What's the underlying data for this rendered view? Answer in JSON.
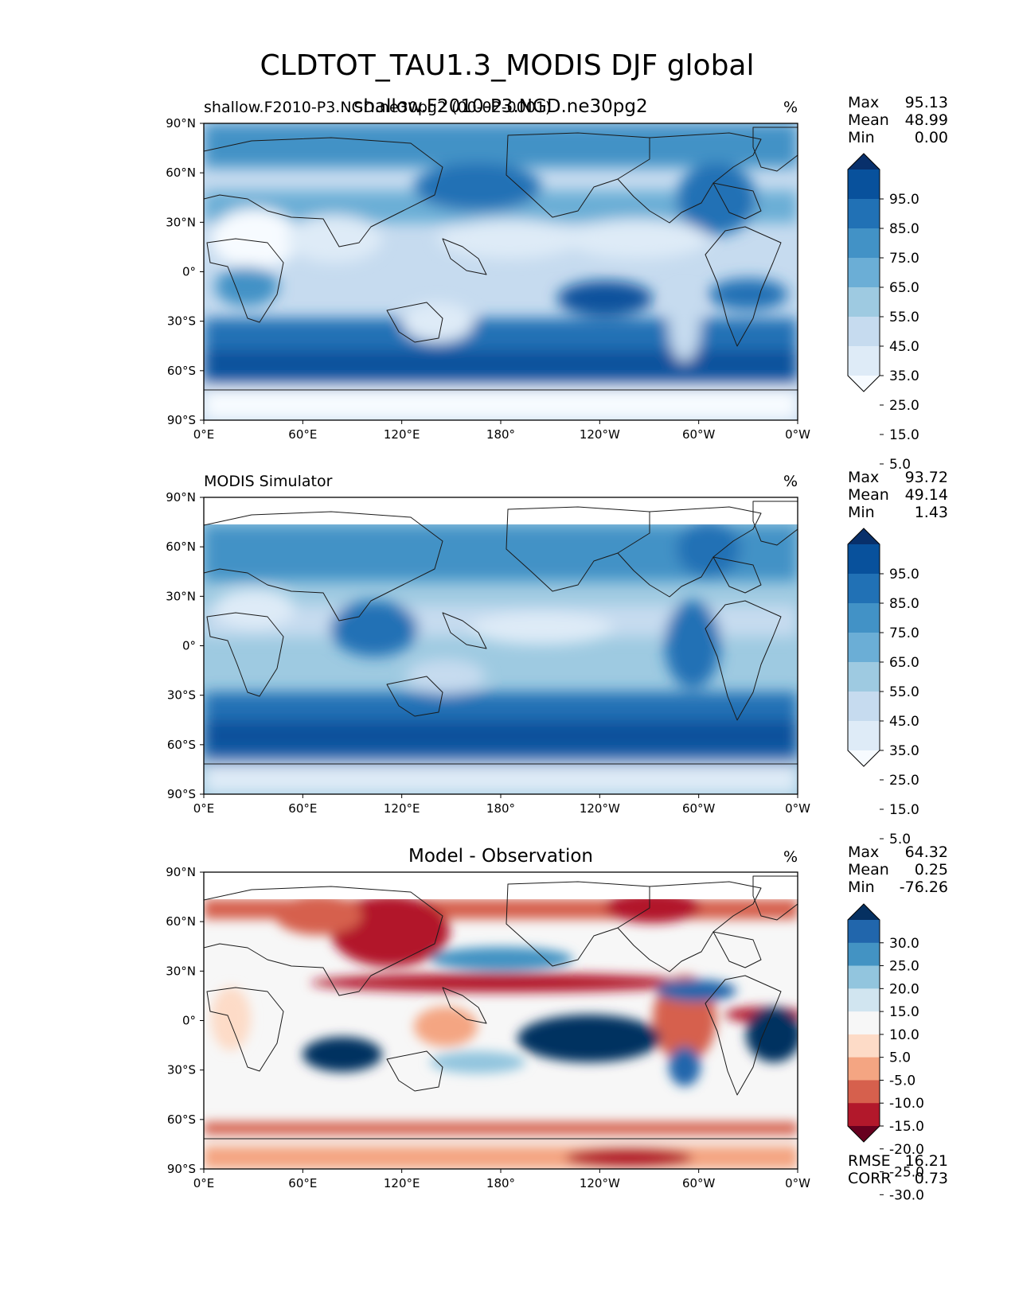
{
  "title": "CLDTOT_TAU1.3_MODIS DJF global",
  "colors": {
    "seq": [
      "#f7fbff",
      "#deebf7",
      "#c6dbef",
      "#9ecae1",
      "#6baed6",
      "#4292c6",
      "#2171b5",
      "#08519c",
      "#08306b"
    ],
    "div": [
      "#67001f",
      "#b2182b",
      "#d6604d",
      "#f4a582",
      "#fddbc7",
      "#f7f7f7",
      "#d1e5f0",
      "#92c5de",
      "#4393c3",
      "#2166ac",
      "#053061"
    ]
  },
  "axis": {
    "lon_ticks": [
      "0°E",
      "60°E",
      "120°E",
      "180°",
      "120°W",
      "60°W",
      "0°W"
    ],
    "lat_ticks": [
      "90°N",
      "60°N",
      "30°N",
      "0°",
      "30°S",
      "60°S",
      "90°S"
    ]
  },
  "panels": [
    {
      "left_title": "shallow.F2010-P3.NGD.ne30pg2 (00-02-0001)",
      "center_title": "shallow.F2010-P3.NGD.ne30pg2",
      "unit": "%",
      "stats": [
        {
          "label": "Max",
          "value": "95.13"
        },
        {
          "label": "Mean",
          "value": "48.99"
        },
        {
          "label": "Min",
          "value": "0.00"
        }
      ],
      "colorbar_ticks": [
        "95.0",
        "85.0",
        "75.0",
        "65.0",
        "55.0",
        "45.0",
        "35.0",
        "25.0",
        "15.0",
        "5.0"
      ]
    },
    {
      "left_title": "MODIS Simulator",
      "center_title": "",
      "unit": "%",
      "stats": [
        {
          "label": "Max",
          "value": "93.72"
        },
        {
          "label": "Mean",
          "value": "49.14"
        },
        {
          "label": "Min",
          "value": "1.43"
        }
      ],
      "colorbar_ticks": [
        "95.0",
        "85.0",
        "75.0",
        "65.0",
        "55.0",
        "45.0",
        "35.0",
        "25.0",
        "15.0",
        "5.0"
      ]
    },
    {
      "left_title": "",
      "center_title": "Model - Observation",
      "unit": "%",
      "stats": [
        {
          "label": "Max",
          "value": "64.32"
        },
        {
          "label": "Mean",
          "value": "0.25"
        },
        {
          "label": "Min",
          "value": "-76.26"
        }
      ],
      "colorbar_ticks": [
        "30.0",
        "25.0",
        "20.0",
        "15.0",
        "10.0",
        "5.0",
        "-5.0",
        "-10.0",
        "-15.0",
        "-20.0",
        "-25.0",
        "-30.0"
      ],
      "metrics": [
        {
          "label": "RMSE",
          "value": "16.21"
        },
        {
          "label": "CORR",
          "value": "0.73"
        }
      ]
    }
  ],
  "chart_data": {
    "type": "heatmap",
    "title": "CLDTOT_TAU1.3_MODIS DJF global",
    "xlim": [
      0,
      360
    ],
    "ylim": [
      -90,
      90
    ],
    "x_ticks": [
      "0°E",
      "60°E",
      "120°E",
      "180°",
      "120°W",
      "60°W",
      "0°W"
    ],
    "y_ticks": [
      "90°N",
      "60°N",
      "30°N",
      "0°",
      "30°S",
      "60°S",
      "90°S"
    ],
    "maps": [
      {
        "name": "shallow.F2010-P3.NGD.ne30pg2",
        "unit": "%",
        "levels": [
          5,
          15,
          25,
          35,
          45,
          55,
          65,
          75,
          85,
          95
        ],
        "max": 95.13,
        "mean": 48.99,
        "min": 0.0
      },
      {
        "name": "MODIS Simulator",
        "unit": "%",
        "levels": [
          5,
          15,
          25,
          35,
          45,
          55,
          65,
          75,
          85,
          95
        ],
        "max": 93.72,
        "mean": 49.14,
        "min": 1.43
      },
      {
        "name": "Model - Observation",
        "unit": "%",
        "levels": [
          -30,
          -25,
          -20,
          -15,
          -10,
          -5,
          5,
          10,
          15,
          20,
          25,
          30
        ],
        "max": 64.32,
        "mean": 0.25,
        "min": -76.26,
        "rmse": 16.21,
        "corr": 0.73
      }
    ]
  }
}
